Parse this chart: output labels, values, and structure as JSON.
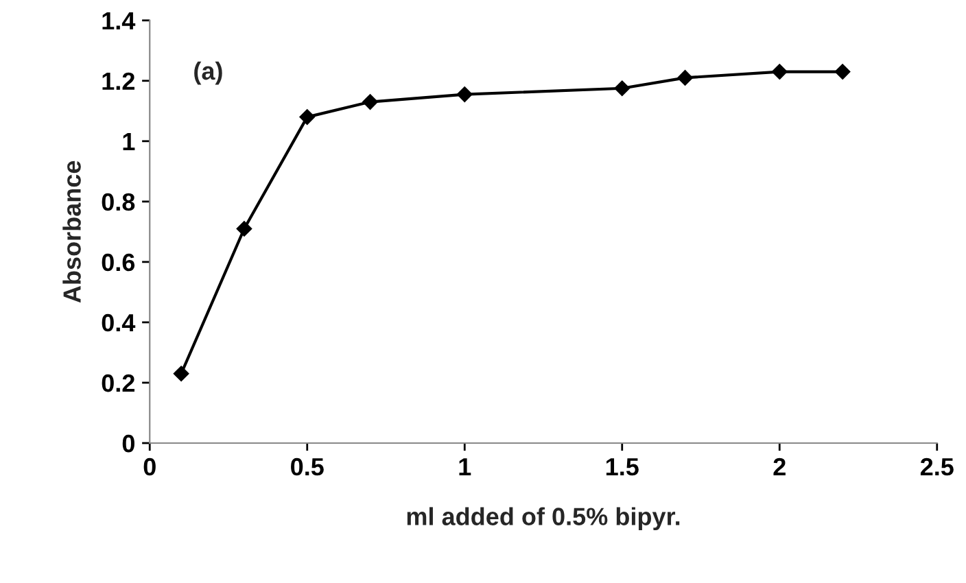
{
  "chart_data": {
    "type": "line",
    "xlabel": "ml added of 0.5% bipyr.",
    "ylabel": "Absorbance",
    "annotations": [
      "(a)"
    ],
    "x": [
      0.1,
      0.3,
      0.5,
      0.7,
      1.0,
      1.5,
      1.7,
      2.0,
      2.2
    ],
    "series": [
      {
        "color": "#000000",
        "values": [
          0.23,
          0.71,
          1.08,
          1.13,
          1.155,
          1.175,
          1.21,
          1.23,
          1.23
        ]
      }
    ],
    "xlim": [
      0,
      2.5
    ],
    "xticks": [
      0,
      0.5,
      1,
      1.5,
      2,
      2.5
    ],
    "ylim": [
      0,
      1.4
    ],
    "yticks": [
      0,
      0.2,
      0.4,
      0.6,
      0.8,
      1,
      1.2,
      1.4
    ],
    "grid": false,
    "marker": "diamond",
    "line_style": "solid"
  }
}
